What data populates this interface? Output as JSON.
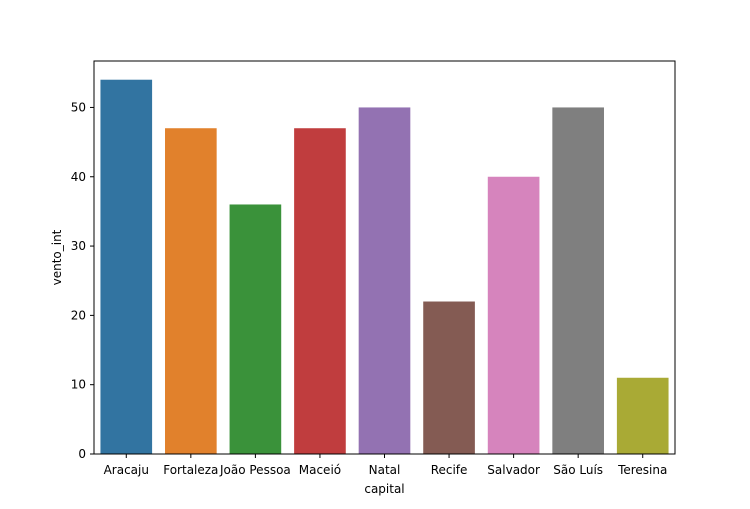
{
  "chart_data": {
    "type": "bar",
    "title": "",
    "xlabel": "capital",
    "ylabel": "vento_int",
    "categories": [
      "Aracaju",
      "Fortaleza",
      "João Pessoa",
      "Maceió",
      "Natal",
      "Recife",
      "Salvador",
      "São Luís",
      "Teresina"
    ],
    "values": [
      54,
      47,
      36,
      47,
      50,
      22,
      40,
      50,
      11
    ],
    "colors": [
      "#3274a1",
      "#e1812c",
      "#3a923a",
      "#c03d3e",
      "#9372b2",
      "#845b53",
      "#d684bd",
      "#7f7f7f",
      "#a9aa35"
    ],
    "ylim": [
      0,
      56.7
    ],
    "yticks": [
      0,
      10,
      20,
      30,
      40,
      50
    ],
    "grid": false,
    "legend": "none"
  }
}
